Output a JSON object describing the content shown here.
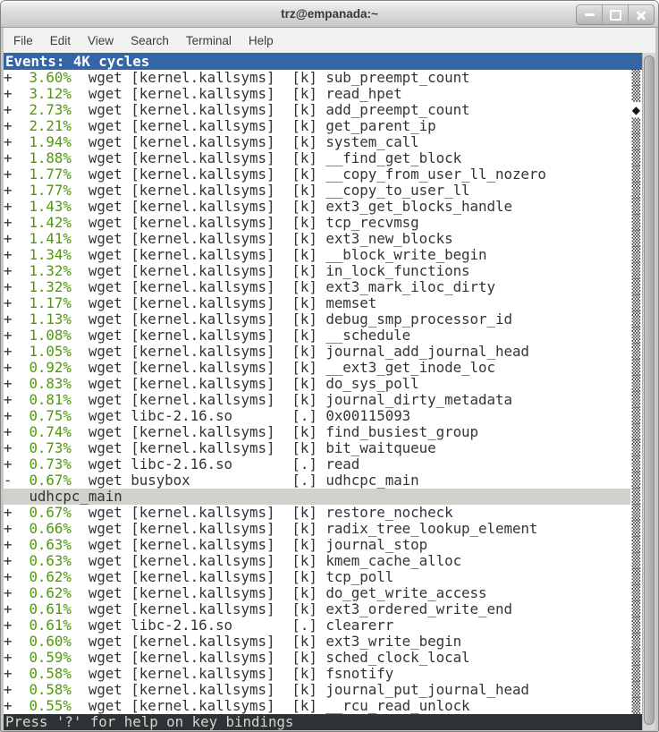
{
  "window": {
    "title": "trz@empanada:~",
    "controls": [
      "minimize",
      "maximize",
      "close"
    ]
  },
  "menu": {
    "items": [
      "File",
      "Edit",
      "View",
      "Search",
      "Terminal",
      "Help"
    ]
  },
  "colors": {
    "header_blue": "#3465a4",
    "percent_green": "#4e9a06",
    "selected_row_bg": "#d2d2ca",
    "footer_bg": "#2e3436",
    "terminal_fg": "#2f3436"
  },
  "perf": {
    "header": "Events: 4K cycles",
    "footer": "Press '?' for help on key bindings",
    "rows": [
      {
        "prefix": "+",
        "pct": "3.60%",
        "comm": "wget",
        "dso": "[kernel.kallsyms]",
        "mode": "[k]",
        "symbol": "sub_preempt_count",
        "marker": "block"
      },
      {
        "prefix": "+",
        "pct": "3.12%",
        "comm": "wget",
        "dso": "[kernel.kallsyms]",
        "mode": "[k]",
        "symbol": "read_hpet",
        "marker": "block"
      },
      {
        "prefix": "+",
        "pct": "2.73%",
        "comm": "wget",
        "dso": "[kernel.kallsyms]",
        "mode": "[k]",
        "symbol": "add_preempt_count",
        "marker": "diamond"
      },
      {
        "prefix": "+",
        "pct": "2.21%",
        "comm": "wget",
        "dso": "[kernel.kallsyms]",
        "mode": "[k]",
        "symbol": "get_parent_ip",
        "marker": "block"
      },
      {
        "prefix": "+",
        "pct": "1.94%",
        "comm": "wget",
        "dso": "[kernel.kallsyms]",
        "mode": "[k]",
        "symbol": "system_call",
        "marker": "block"
      },
      {
        "prefix": "+",
        "pct": "1.88%",
        "comm": "wget",
        "dso": "[kernel.kallsyms]",
        "mode": "[k]",
        "symbol": "__find_get_block",
        "marker": "block"
      },
      {
        "prefix": "+",
        "pct": "1.77%",
        "comm": "wget",
        "dso": "[kernel.kallsyms]",
        "mode": "[k]",
        "symbol": "__copy_from_user_ll_nozero",
        "marker": "block"
      },
      {
        "prefix": "+",
        "pct": "1.77%",
        "comm": "wget",
        "dso": "[kernel.kallsyms]",
        "mode": "[k]",
        "symbol": "__copy_to_user_ll",
        "marker": "block"
      },
      {
        "prefix": "+",
        "pct": "1.43%",
        "comm": "wget",
        "dso": "[kernel.kallsyms]",
        "mode": "[k]",
        "symbol": "ext3_get_blocks_handle",
        "marker": "block"
      },
      {
        "prefix": "+",
        "pct": "1.42%",
        "comm": "wget",
        "dso": "[kernel.kallsyms]",
        "mode": "[k]",
        "symbol": "tcp_recvmsg",
        "marker": "block"
      },
      {
        "prefix": "+",
        "pct": "1.41%",
        "comm": "wget",
        "dso": "[kernel.kallsyms]",
        "mode": "[k]",
        "symbol": "ext3_new_blocks",
        "marker": "block"
      },
      {
        "prefix": "+",
        "pct": "1.34%",
        "comm": "wget",
        "dso": "[kernel.kallsyms]",
        "mode": "[k]",
        "symbol": "__block_write_begin",
        "marker": "block"
      },
      {
        "prefix": "+",
        "pct": "1.32%",
        "comm": "wget",
        "dso": "[kernel.kallsyms]",
        "mode": "[k]",
        "symbol": "in_lock_functions",
        "marker": "block"
      },
      {
        "prefix": "+",
        "pct": "1.32%",
        "comm": "wget",
        "dso": "[kernel.kallsyms]",
        "mode": "[k]",
        "symbol": "ext3_mark_iloc_dirty",
        "marker": "block"
      },
      {
        "prefix": "+",
        "pct": "1.17%",
        "comm": "wget",
        "dso": "[kernel.kallsyms]",
        "mode": "[k]",
        "symbol": "memset",
        "marker": "block"
      },
      {
        "prefix": "+",
        "pct": "1.13%",
        "comm": "wget",
        "dso": "[kernel.kallsyms]",
        "mode": "[k]",
        "symbol": "debug_smp_processor_id",
        "marker": "block"
      },
      {
        "prefix": "+",
        "pct": "1.08%",
        "comm": "wget",
        "dso": "[kernel.kallsyms]",
        "mode": "[k]",
        "symbol": "__schedule",
        "marker": "block"
      },
      {
        "prefix": "+",
        "pct": "1.05%",
        "comm": "wget",
        "dso": "[kernel.kallsyms]",
        "mode": "[k]",
        "symbol": "journal_add_journal_head",
        "marker": "block"
      },
      {
        "prefix": "+",
        "pct": "0.92%",
        "comm": "wget",
        "dso": "[kernel.kallsyms]",
        "mode": "[k]",
        "symbol": "__ext3_get_inode_loc",
        "marker": "block"
      },
      {
        "prefix": "+",
        "pct": "0.83%",
        "comm": "wget",
        "dso": "[kernel.kallsyms]",
        "mode": "[k]",
        "symbol": "do_sys_poll",
        "marker": "block"
      },
      {
        "prefix": "+",
        "pct": "0.81%",
        "comm": "wget",
        "dso": "[kernel.kallsyms]",
        "mode": "[k]",
        "symbol": "journal_dirty_metadata",
        "marker": "block"
      },
      {
        "prefix": "+",
        "pct": "0.75%",
        "comm": "wget",
        "dso": "libc-2.16.so",
        "mode": "[.]",
        "symbol": "0x00115093",
        "marker": "block"
      },
      {
        "prefix": "+",
        "pct": "0.74%",
        "comm": "wget",
        "dso": "[kernel.kallsyms]",
        "mode": "[k]",
        "symbol": "find_busiest_group",
        "marker": "block"
      },
      {
        "prefix": "+",
        "pct": "0.73%",
        "comm": "wget",
        "dso": "[kernel.kallsyms]",
        "mode": "[k]",
        "symbol": "bit_waitqueue",
        "marker": "block"
      },
      {
        "prefix": "+",
        "pct": "0.73%",
        "comm": "wget",
        "dso": "libc-2.16.so",
        "mode": "[.]",
        "symbol": "read",
        "marker": "block"
      },
      {
        "prefix": "-",
        "pct": "0.67%",
        "comm": "wget",
        "dso": "busybox",
        "mode": "[.]",
        "symbol": "udhcpc_main",
        "marker": "block"
      },
      {
        "type": "child",
        "symbol": "udhcpc_main",
        "selected": true,
        "marker": "block"
      },
      {
        "prefix": "+",
        "pct": "0.67%",
        "comm": "wget",
        "dso": "[kernel.kallsyms]",
        "mode": "[k]",
        "symbol": "restore_nocheck",
        "marker": "block"
      },
      {
        "prefix": "+",
        "pct": "0.66%",
        "comm": "wget",
        "dso": "[kernel.kallsyms]",
        "mode": "[k]",
        "symbol": "radix_tree_lookup_element",
        "marker": "block"
      },
      {
        "prefix": "+",
        "pct": "0.63%",
        "comm": "wget",
        "dso": "[kernel.kallsyms]",
        "mode": "[k]",
        "symbol": "journal_stop",
        "marker": "block"
      },
      {
        "prefix": "+",
        "pct": "0.63%",
        "comm": "wget",
        "dso": "[kernel.kallsyms]",
        "mode": "[k]",
        "symbol": "kmem_cache_alloc",
        "marker": "block"
      },
      {
        "prefix": "+",
        "pct": "0.62%",
        "comm": "wget",
        "dso": "[kernel.kallsyms]",
        "mode": "[k]",
        "symbol": "tcp_poll",
        "marker": "block"
      },
      {
        "prefix": "+",
        "pct": "0.62%",
        "comm": "wget",
        "dso": "[kernel.kallsyms]",
        "mode": "[k]",
        "symbol": "do_get_write_access",
        "marker": "block"
      },
      {
        "prefix": "+",
        "pct": "0.61%",
        "comm": "wget",
        "dso": "[kernel.kallsyms]",
        "mode": "[k]",
        "symbol": "ext3_ordered_write_end",
        "marker": "block"
      },
      {
        "prefix": "+",
        "pct": "0.61%",
        "comm": "wget",
        "dso": "libc-2.16.so",
        "mode": "[.]",
        "symbol": "clearerr",
        "marker": "block"
      },
      {
        "prefix": "+",
        "pct": "0.60%",
        "comm": "wget",
        "dso": "[kernel.kallsyms]",
        "mode": "[k]",
        "symbol": "ext3_write_begin",
        "marker": "block"
      },
      {
        "prefix": "+",
        "pct": "0.59%",
        "comm": "wget",
        "dso": "[kernel.kallsyms]",
        "mode": "[k]",
        "symbol": "sched_clock_local",
        "marker": "block"
      },
      {
        "prefix": "+",
        "pct": "0.58%",
        "comm": "wget",
        "dso": "[kernel.kallsyms]",
        "mode": "[k]",
        "symbol": "fsnotify",
        "marker": "block"
      },
      {
        "prefix": "+",
        "pct": "0.58%",
        "comm": "wget",
        "dso": "[kernel.kallsyms]",
        "mode": "[k]",
        "symbol": "journal_put_journal_head",
        "marker": "block"
      },
      {
        "prefix": "+",
        "pct": "0.55%",
        "comm": "wget",
        "dso": "[kernel.kallsyms]",
        "mode": "[k]",
        "symbol": "__rcu_read_unlock",
        "marker": "block"
      }
    ]
  }
}
